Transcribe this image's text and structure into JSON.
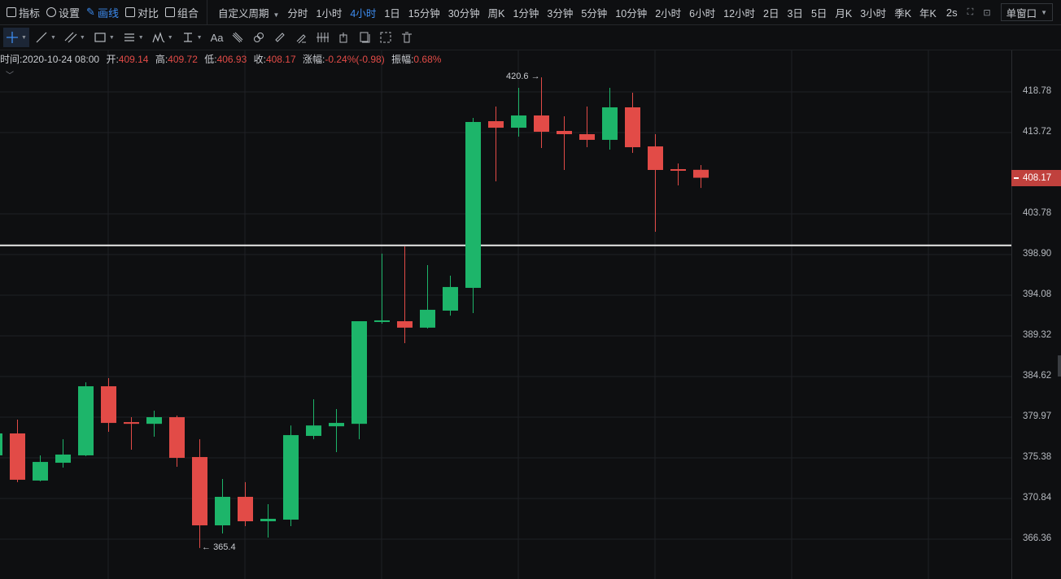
{
  "topbar": {
    "tools": [
      {
        "label": "指标",
        "icon": "indicator-chart-icon"
      },
      {
        "label": "设置",
        "icon": "settings-hex-icon"
      },
      {
        "label": "画线",
        "icon": "pencil-icon",
        "active": true
      },
      {
        "label": "对比",
        "icon": "compare-icon"
      },
      {
        "label": "组合",
        "icon": "combo-icon"
      }
    ],
    "custom_period": "自定义周期",
    "periods": [
      "分时",
      "1小时",
      "4小时",
      "1日",
      "15分钟",
      "30分钟",
      "周K",
      "1分钟",
      "3分钟",
      "5分钟",
      "10分钟",
      "2小时",
      "6小时",
      "12小时",
      "2日",
      "3日",
      "5日",
      "月K",
      "3小时",
      "季K",
      "年K"
    ],
    "active_period": "4小时",
    "refresh": "2s",
    "window_mode": "单窗口"
  },
  "drawbar": {
    "tools": [
      "crosshair",
      "trend-line",
      "parallel-channel",
      "rectangle",
      "horizontal-lines",
      "wave-pattern",
      "measure"
    ],
    "text_tool": "Aa"
  },
  "info": {
    "time_label": "时间:",
    "time": "2020-10-24 08:00",
    "open_label": "开:",
    "open": "409.14",
    "high_label": "高:",
    "high": "409.72",
    "low_label": "低:",
    "low": "406.93",
    "close_label": "收:",
    "close": "408.17",
    "change_label": "涨幅:",
    "change": "-0.24%(-0.98)",
    "amplitude_label": "振幅:",
    "amplitude": "0.68%"
  },
  "colors": {
    "up": "#1db56a",
    "down": "#e24b47",
    "accent": "#3d8cf0",
    "background": "#0e0f11"
  },
  "chart_data": {
    "type": "candlestick",
    "y_scale": "log",
    "grid": true,
    "y_ticks": [
      "418.78",
      "413.72",
      "403.78",
      "398.90",
      "394.08",
      "389.32",
      "384.62",
      "379.97",
      "375.38",
      "370.84",
      "366.36"
    ],
    "current_price": "408.17",
    "horizontal_line": 400.0,
    "annotations": {
      "max": "420.6",
      "min": "365.4"
    },
    "candles": [
      [
        375.66,
        378.9,
        375.0,
        378.13
      ],
      [
        378.13,
        379.69,
        372.66,
        372.93
      ],
      [
        372.84,
        375.66,
        372.75,
        374.92
      ],
      [
        374.83,
        377.48,
        374.29,
        375.75
      ],
      [
        375.66,
        383.95,
        375.57,
        383.5
      ],
      [
        383.5,
        384.43,
        378.31,
        379.32
      ],
      [
        379.41,
        379.97,
        376.3,
        379.22
      ],
      [
        379.22,
        380.71,
        377.76,
        379.97
      ],
      [
        379.97,
        380.16,
        374.38,
        375.38
      ],
      [
        375.47,
        377.48,
        365.4,
        367.88
      ],
      [
        367.88,
        373.02,
        366.99,
        371.03
      ],
      [
        371.03,
        372.66,
        367.79,
        368.33
      ],
      [
        368.33,
        370.22,
        366.54,
        368.6
      ],
      [
        368.51,
        379.03,
        367.79,
        377.94
      ],
      [
        377.85,
        382.01,
        377.48,
        379.03
      ],
      [
        378.94,
        380.9,
        376.02,
        379.32
      ],
      [
        379.22,
        391.03,
        377.48,
        391.03
      ],
      [
        390.94,
        399.01,
        390.74,
        391.13
      ],
      [
        391.03,
        399.88,
        388.47,
        390.28
      ],
      [
        390.28,
        397.65,
        390.18,
        392.37
      ],
      [
        392.27,
        396.39,
        391.68,
        395.05
      ],
      [
        394.95,
        415.54,
        391.98,
        415.03
      ],
      [
        415.13,
        416.95,
        407.73,
        414.32
      ],
      [
        414.32,
        419.29,
        413.22,
        415.84
      ],
      [
        415.84,
        420.6,
        411.81,
        413.82
      ],
      [
        413.92,
        415.74,
        409.12,
        413.52
      ],
      [
        413.52,
        416.95,
        411.91,
        412.82
      ],
      [
        412.82,
        419.29,
        411.61,
        416.85
      ],
      [
        416.85,
        418.68,
        411.21,
        411.91
      ],
      [
        412.01,
        413.52,
        401.63,
        409.12
      ],
      [
        409.22,
        409.91,
        407.23,
        409.02
      ],
      [
        409.14,
        409.72,
        406.93,
        408.17
      ]
    ]
  }
}
